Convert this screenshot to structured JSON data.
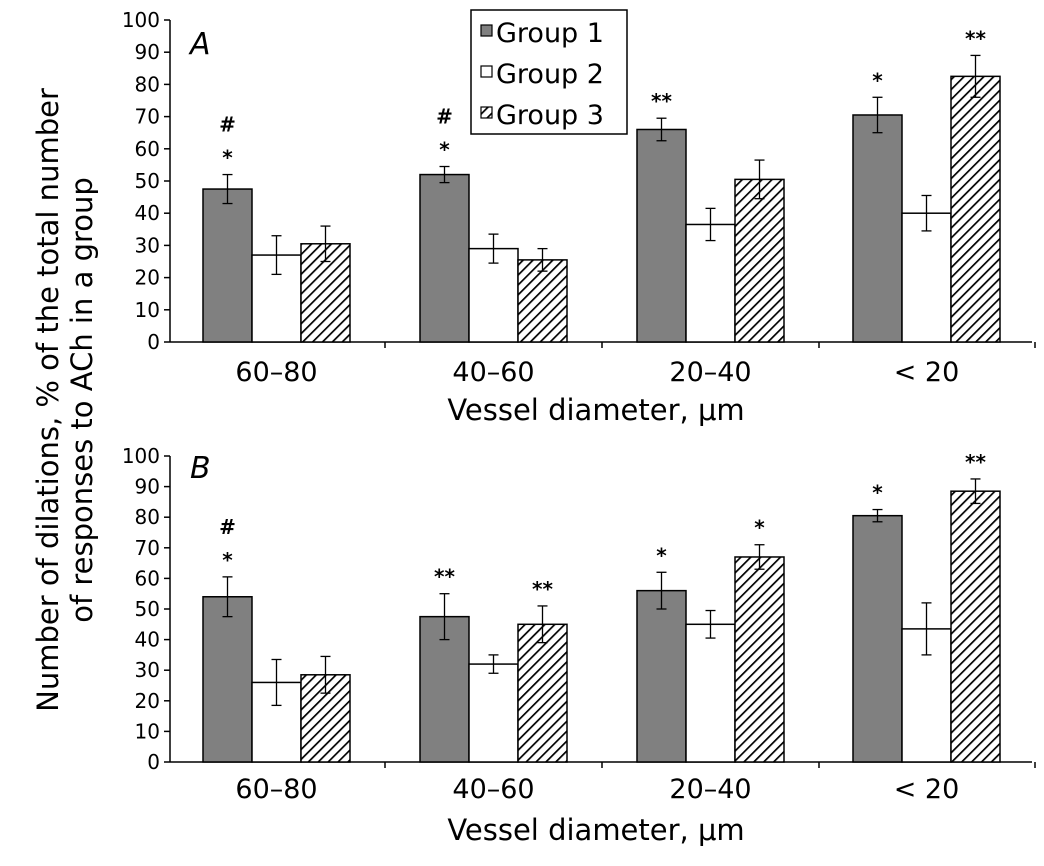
{
  "y_axis_label_line1": "Number of dilations, % of the total number",
  "y_axis_label_line2": "of responses to ACh in a group",
  "legend": [
    {
      "label": "Group 1",
      "fill": "#808080"
    },
    {
      "label": "Group 2",
      "fill": "#ffffff"
    },
    {
      "label": "Group 3",
      "fill": "hatch"
    }
  ],
  "chart_data": [
    {
      "type": "bar",
      "panel": "A",
      "xlabel": "Vessel diameter, μm",
      "ylabel": "",
      "categories": [
        "60–80",
        "40–60",
        "20–40",
        "< 20"
      ],
      "ylim": [
        0,
        100
      ],
      "yticks": [
        "0",
        "10",
        "20",
        "30",
        "40",
        "50",
        "60",
        "70",
        "80",
        "90",
        "100"
      ],
      "series": [
        {
          "name": "Group 1",
          "values": [
            47.5,
            52,
            66,
            70.5
          ],
          "errors": [
            4.5,
            2.5,
            3.5,
            5.5
          ],
          "labels": [
            "#\n*",
            "#\n*",
            "**",
            "*"
          ]
        },
        {
          "name": "Group 2",
          "values": [
            27,
            29,
            36.5,
            40
          ],
          "errors": [
            6,
            4.5,
            5,
            5.5
          ],
          "labels": [
            "",
            "",
            "",
            ""
          ]
        },
        {
          "name": "Group 3",
          "values": [
            30.5,
            25.5,
            50.5,
            82.5
          ],
          "errors": [
            5.5,
            3.5,
            6,
            6.5
          ],
          "labels": [
            "",
            "",
            "",
            "**"
          ]
        }
      ]
    },
    {
      "type": "bar",
      "panel": "B",
      "xlabel": "Vessel diameter, μm",
      "ylabel": "",
      "categories": [
        "60–80",
        "40–60",
        "20–40",
        "< 20"
      ],
      "ylim": [
        0,
        100
      ],
      "yticks": [
        "0",
        "10",
        "20",
        "30",
        "40",
        "50",
        "60",
        "70",
        "80",
        "90",
        "100"
      ],
      "series": [
        {
          "name": "Group 1",
          "values": [
            54,
            47.5,
            56,
            80.5
          ],
          "errors": [
            6.5,
            7.5,
            6,
            2
          ],
          "labels": [
            "#\n*",
            "**",
            "*",
            "*"
          ]
        },
        {
          "name": "Group 2",
          "values": [
            26,
            32,
            45,
            43.5
          ],
          "errors": [
            7.5,
            3,
            4.5,
            8.5
          ],
          "labels": [
            "",
            "",
            "",
            ""
          ]
        },
        {
          "name": "Group 3",
          "values": [
            28.5,
            45,
            67,
            88.5
          ],
          "errors": [
            6,
            6,
            4,
            4
          ],
          "labels": [
            "",
            "**",
            "*",
            "**"
          ]
        }
      ]
    }
  ]
}
